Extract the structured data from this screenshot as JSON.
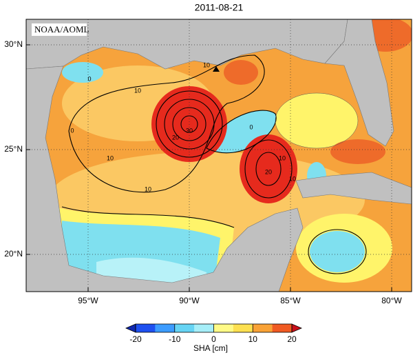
{
  "title": "2011-08-21",
  "credit": "NOAA/AOML",
  "map": {
    "xticks": [
      {
        "value": -95,
        "label": "95°W"
      },
      {
        "value": -90,
        "label": "90°W"
      },
      {
        "value": -85,
        "label": "85°W"
      },
      {
        "value": -80,
        "label": "80°W"
      }
    ],
    "yticks": [
      {
        "value": 20,
        "label": "20°N"
      },
      {
        "value": 25,
        "label": "25°N"
      },
      {
        "value": 30,
        "label": "30°N"
      }
    ],
    "contour_labels": [
      "0",
      "10",
      "10",
      "0",
      "10",
      "20",
      "30",
      "10",
      "0",
      "10",
      "20",
      "10"
    ]
  },
  "colorbar": {
    "ticks": [
      -20,
      -10,
      0,
      10,
      20
    ],
    "label": "SHA [cm]"
  }
}
